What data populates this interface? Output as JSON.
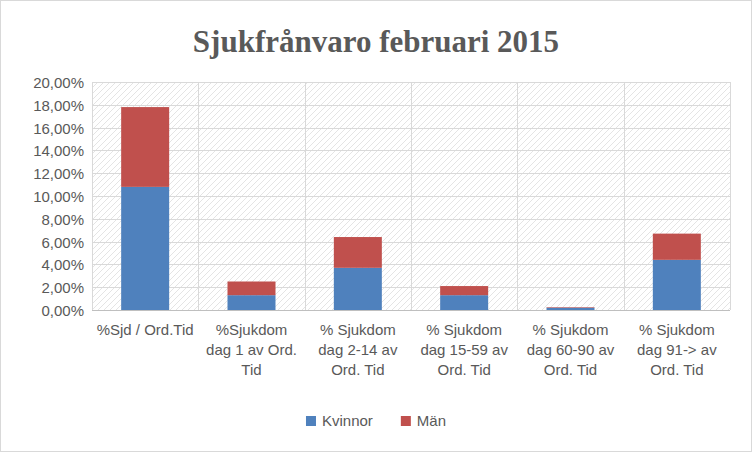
{
  "chart_data": {
    "type": "bar",
    "title": "Sjukfrånvaro februari 2015",
    "categories": [
      "%Sjd / Ord.Tid",
      "%Sjukdom dag 1 av Ord. Tid",
      "% Sjukdom dag 2-14 av Ord. Tid",
      "% Sjukdom dag 15-59 av Ord. Tid",
      "% Sjukdom dag 60-90 av Ord. Tid",
      "% Sjukdom dag 91-> av Ord. Tid"
    ],
    "series": [
      {
        "name": "Kvinnor",
        "color": "#4f81bd",
        "values": [
          10.8,
          1.3,
          3.7,
          1.3,
          0.2,
          4.4
        ]
      },
      {
        "name": "Män",
        "color": "#c0504d",
        "values": [
          7.0,
          1.2,
          2.7,
          0.8,
          0.05,
          2.3
        ]
      }
    ],
    "ylim": [
      0,
      20
    ],
    "yticks": [
      {
        "value": 0,
        "label": "0,00%"
      },
      {
        "value": 2,
        "label": "2,00%"
      },
      {
        "value": 4,
        "label": "4,00%"
      },
      {
        "value": 6,
        "label": "6,00%"
      },
      {
        "value": 8,
        "label": "8,00%"
      },
      {
        "value": 10,
        "label": "10,00%"
      },
      {
        "value": 12,
        "label": "12,00%"
      },
      {
        "value": 14,
        "label": "14,00%"
      },
      {
        "value": 16,
        "label": "16,00%"
      },
      {
        "value": 18,
        "label": "18,00%"
      },
      {
        "value": 20,
        "label": "20,00%"
      }
    ],
    "grid": true,
    "stacked": true,
    "legend": "bottom"
  }
}
